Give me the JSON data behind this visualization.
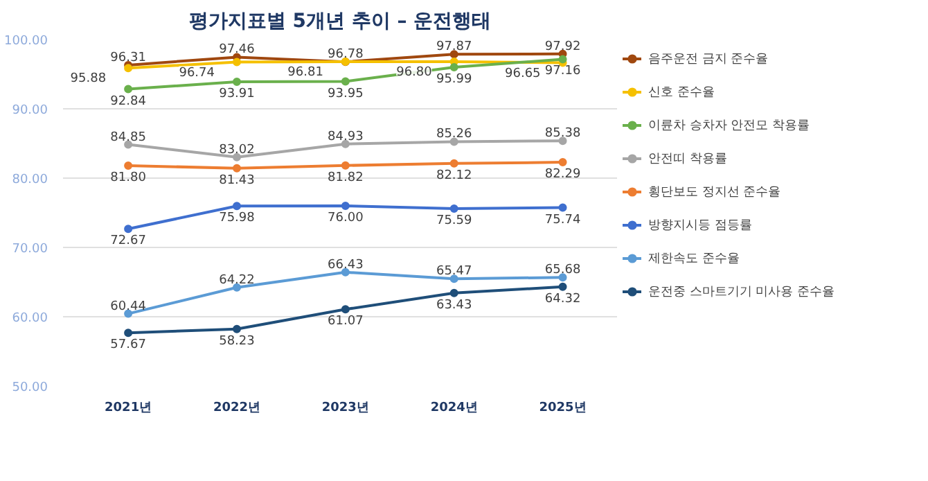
{
  "chart_data": {
    "type": "line",
    "title": "평가지표별 5개년 추이 – 운전행태",
    "categories": [
      "2021년",
      "2022년",
      "2023년",
      "2024년",
      "2025년"
    ],
    "series": [
      {
        "name": "음주운전 금지 준수율",
        "color": "#a0480f",
        "values": [
          96.31,
          97.46,
          96.78,
          97.87,
          97.92
        ]
      },
      {
        "name": "신호 준수율",
        "color": "#f5c000",
        "values": [
          95.88,
          96.74,
          96.81,
          96.8,
          96.65
        ],
        "value_labels": [
          "95.88",
          "96.74",
          "96.81",
          "96.80",
          "96.65"
        ]
      },
      {
        "name": "이륜차 승차자 안전모 착용률",
        "color": "#6ab04c",
        "values": [
          92.84,
          93.91,
          93.95,
          95.99,
          97.16
        ]
      },
      {
        "name": "안전띠 착용률",
        "color": "#a6a6a6",
        "values": [
          84.85,
          83.02,
          84.93,
          85.26,
          85.38
        ]
      },
      {
        "name": "횡단보도 정지선 준수율",
        "color": "#ed7d31",
        "values": [
          81.8,
          81.43,
          81.82,
          82.12,
          82.29
        ],
        "value_labels": [
          "81.80",
          "81.43",
          "81.82",
          "82.12",
          "82.29"
        ]
      },
      {
        "name": "방향지시등 점등률",
        "color": "#3f6fcf",
        "values": [
          72.67,
          75.98,
          76.0,
          75.59,
          75.74
        ],
        "value_labels": [
          "72.67",
          "75.98",
          "76.00",
          "75.59",
          "75.74"
        ]
      },
      {
        "name": "제한속도 준수율",
        "color": "#5b9bd5",
        "values": [
          60.44,
          64.22,
          66.43,
          65.47,
          65.68
        ]
      },
      {
        "name": "운전중 스마트기기 미사용 준수율",
        "color": "#1f4e79",
        "values": [
          57.67,
          58.23,
          61.07,
          63.43,
          64.32
        ]
      }
    ],
    "ylim": [
      50,
      100
    ],
    "yticks": [
      {
        "value": 50,
        "label": "50.00"
      },
      {
        "value": 60,
        "label": "60.00"
      },
      {
        "value": 70,
        "label": "70.00"
      },
      {
        "value": 80,
        "label": "80.00"
      },
      {
        "value": 90,
        "label": "90.00"
      },
      {
        "value": 100,
        "label": "100.00"
      }
    ],
    "grid": "y",
    "legend": "right",
    "marker": "circle",
    "line_style": "solid",
    "data_labels": true
  }
}
